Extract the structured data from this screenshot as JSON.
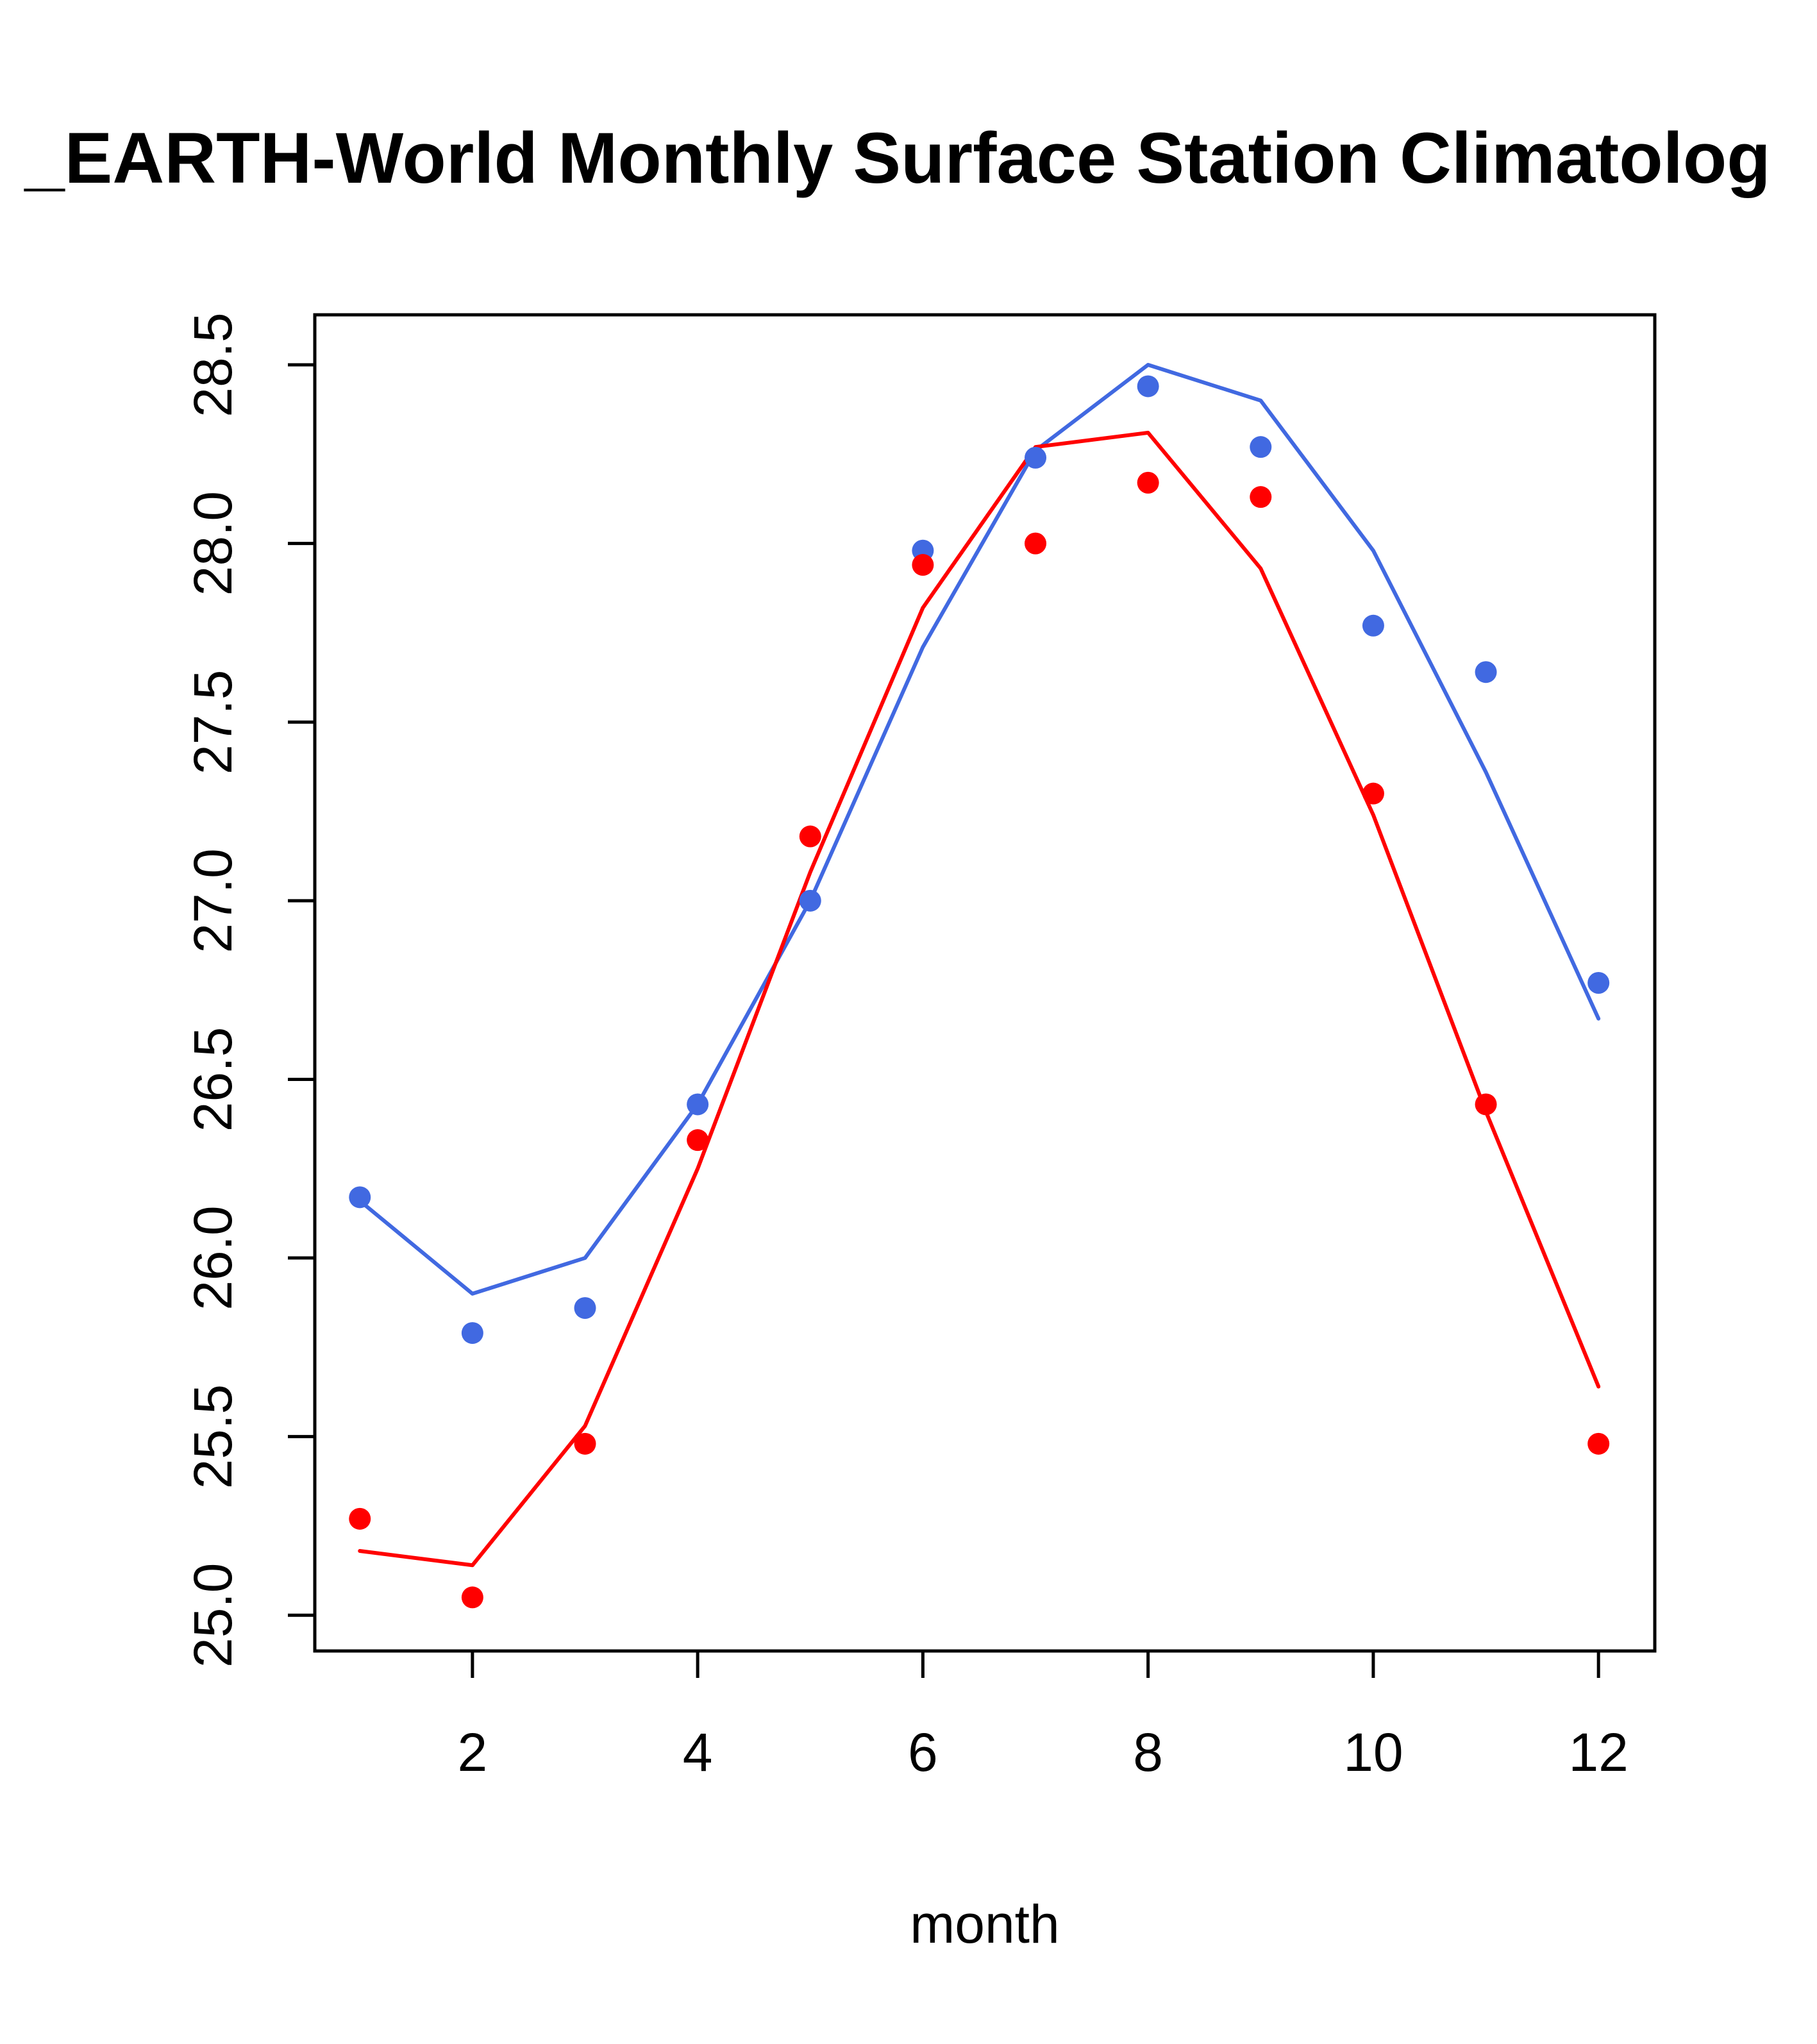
{
  "chart_data": {
    "type": "line",
    "title": "_EARTH-World Monthly Surface Station Climatolog",
    "xlabel": "month",
    "ylabel": "",
    "xlim": [
      0.6,
      12.5
    ],
    "ylim": [
      24.9,
      28.64
    ],
    "x_ticks": [
      2,
      4,
      6,
      8,
      10,
      12
    ],
    "x_tick_labels": [
      "2",
      "4",
      "6",
      "8",
      "10",
      "12"
    ],
    "y_ticks": [
      25.0,
      25.5,
      26.0,
      26.5,
      27.0,
      27.5,
      28.0,
      28.5
    ],
    "y_tick_labels": [
      "25.0",
      "25.5",
      "26.0",
      "26.5",
      "27.0",
      "27.5",
      "28.0",
      "28.5"
    ],
    "grid": false,
    "legend": "none",
    "x": [
      1,
      2,
      3,
      4,
      5,
      6,
      7,
      8,
      9,
      10,
      11,
      12
    ],
    "series": [
      {
        "name": "blue-points",
        "kind": "points",
        "color": "#4169E1",
        "values": [
          26.17,
          25.79,
          25.86,
          26.43,
          27.0,
          27.98,
          28.24,
          28.44,
          28.27,
          27.77,
          27.64,
          26.77
        ]
      },
      {
        "name": "blue-line",
        "kind": "line",
        "color": "#4169E1",
        "values": [
          26.16,
          25.9,
          26.0,
          26.43,
          27.0,
          27.71,
          28.26,
          28.5,
          28.4,
          27.98,
          27.36,
          26.67
        ]
      },
      {
        "name": "red-points",
        "kind": "points",
        "color": "#FF0000",
        "values": [
          25.27,
          25.05,
          25.48,
          26.33,
          27.18,
          27.94,
          28.0,
          28.17,
          28.13,
          27.3,
          26.43,
          25.48
        ]
      },
      {
        "name": "red-line",
        "kind": "line",
        "color": "#FF0000",
        "values": [
          25.18,
          25.14,
          25.53,
          26.25,
          27.08,
          27.82,
          28.27,
          28.31,
          27.93,
          27.24,
          26.41,
          25.64
        ]
      }
    ]
  }
}
